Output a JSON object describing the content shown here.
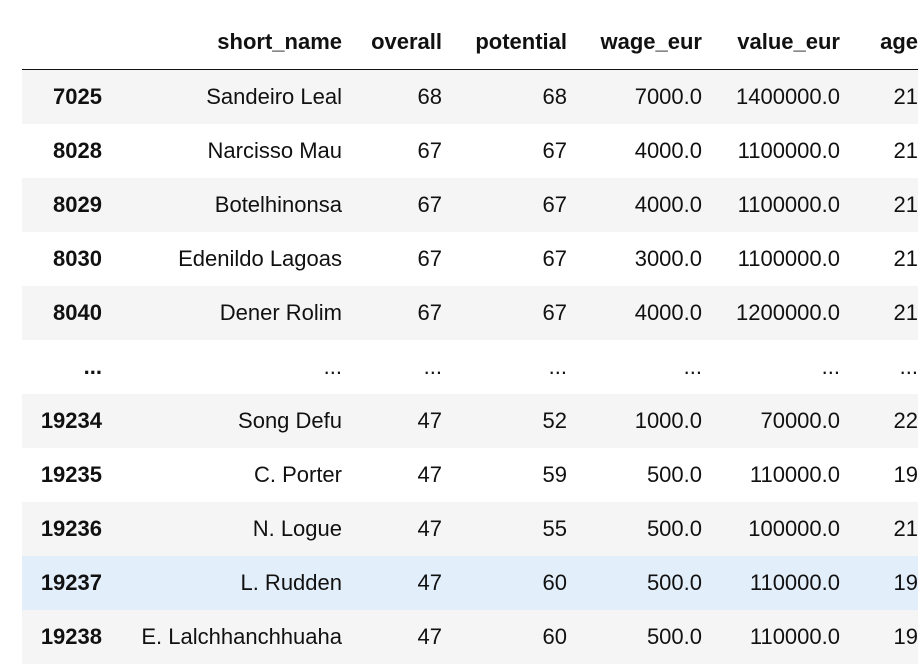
{
  "table": {
    "index_header": "",
    "columns": [
      "short_name",
      "overall",
      "potential",
      "wage_eur",
      "value_eur",
      "age"
    ],
    "rows": [
      {
        "index": "7025",
        "cells": [
          "Sandeiro Leal",
          "68",
          "68",
          "7000.0",
          "1400000.0",
          "21"
        ]
      },
      {
        "index": "8028",
        "cells": [
          "Narcisso Mau",
          "67",
          "67",
          "4000.0",
          "1100000.0",
          "21"
        ]
      },
      {
        "index": "8029",
        "cells": [
          "Botelhinonsa",
          "67",
          "67",
          "4000.0",
          "1100000.0",
          "21"
        ]
      },
      {
        "index": "8030",
        "cells": [
          "Edenildo Lagoas",
          "67",
          "67",
          "3000.0",
          "1100000.0",
          "21"
        ]
      },
      {
        "index": "8040",
        "cells": [
          "Dener Rolim",
          "67",
          "67",
          "4000.0",
          "1200000.0",
          "21"
        ]
      },
      {
        "index": "...",
        "cells": [
          "...",
          "...",
          "...",
          "...",
          "...",
          "..."
        ]
      },
      {
        "index": "19234",
        "cells": [
          "Song Defu",
          "47",
          "52",
          "1000.0",
          "70000.0",
          "22"
        ]
      },
      {
        "index": "19235",
        "cells": [
          "C. Porter",
          "47",
          "59",
          "500.0",
          "110000.0",
          "19"
        ]
      },
      {
        "index": "19236",
        "cells": [
          "N. Logue",
          "47",
          "55",
          "500.0",
          "100000.0",
          "21"
        ]
      },
      {
        "index": "19237",
        "cells": [
          "L. Rudden",
          "47",
          "60",
          "500.0",
          "110000.0",
          "19"
        ]
      },
      {
        "index": "19238",
        "cells": [
          "E. Lalchhanchhuaha",
          "47",
          "60",
          "500.0",
          "110000.0",
          "19"
        ]
      }
    ]
  },
  "colors": {
    "stripe": "#f5f5f5",
    "hover_row": "#e3eefb",
    "text": "#111111"
  }
}
